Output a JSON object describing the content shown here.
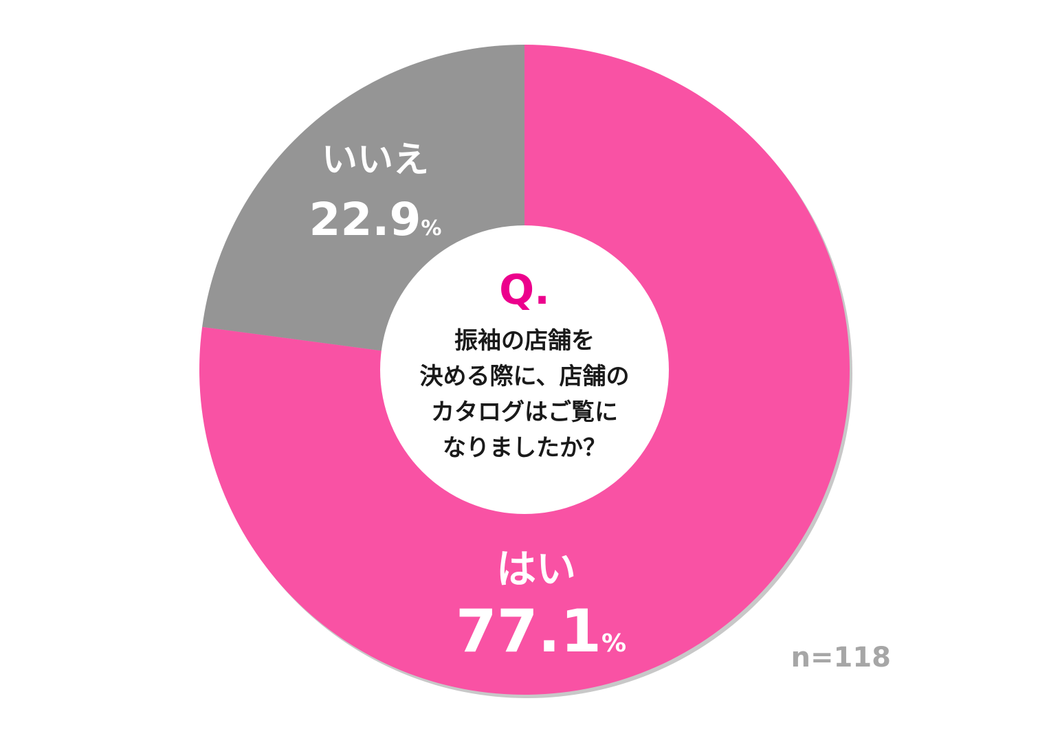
{
  "chart_data": {
    "type": "pie",
    "variant": "donut",
    "question_mark": "Q.",
    "question_lines": [
      "振袖の店舗を",
      "決める際に、店舗の",
      "カタログはご覧に",
      "なりましたか？"
    ],
    "slices": [
      {
        "label": "はい",
        "value": 77.1,
        "value_text": "77.1",
        "unit": "%",
        "color": "#f952a4"
      },
      {
        "label": "いいえ",
        "value": 22.9,
        "value_text": "22.9",
        "unit": "%",
        "color": "#959595"
      }
    ],
    "start": "12 o'clock",
    "direction": "clockwise",
    "sample_size": "n=118"
  },
  "colors": {
    "accent": "#ec008c",
    "background": "#ffffff",
    "center": "#ffffff",
    "shadow": "#c8c8c8"
  }
}
